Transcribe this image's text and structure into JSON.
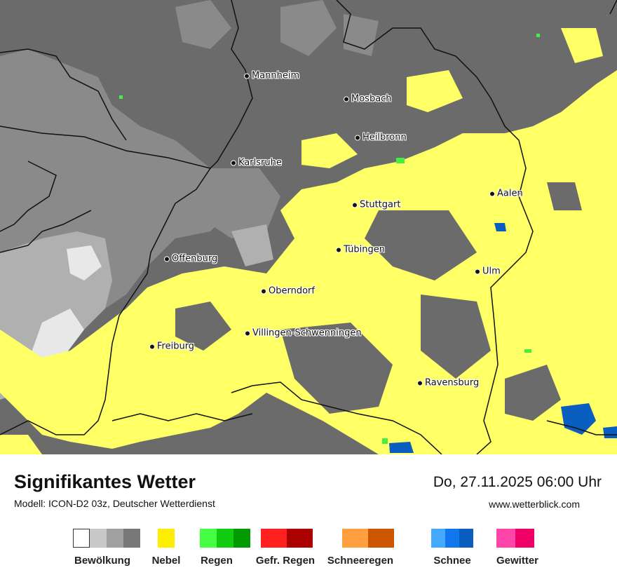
{
  "map": {
    "cities": [
      {
        "name": "Mannheim"
      },
      {
        "name": "Mosbach"
      },
      {
        "name": "Heilbronn"
      },
      {
        "name": "Karlsruhe"
      },
      {
        "name": "Aalen"
      },
      {
        "name": "Stuttgart"
      },
      {
        "name": "Tübingen"
      },
      {
        "name": "Offenburg"
      },
      {
        "name": "Ulm"
      },
      {
        "name": "Oberndorf"
      },
      {
        "name": "Villingen-Schwenningen"
      },
      {
        "name": "Freiburg"
      },
      {
        "name": "Ravensburg"
      }
    ],
    "colors": {
      "background_cloud": "#6b6b6b",
      "medium_cloud": "#8a8a8a",
      "light_cloud": "#b0b0b0",
      "fog": "#ffff66",
      "snow": "#0a5ec0",
      "rain": "#44ee44",
      "border": "#111111"
    }
  },
  "footer": {
    "title": "Signifikantes Wetter",
    "subtitle": "Modell: ICON-D2 03z, Deutscher Wetterdienst",
    "datetime": "Do, 27.11.2025 06:00 Uhr",
    "website": "www.wetterblick.com"
  },
  "legend": [
    {
      "label": "Bewölkung",
      "colors": [
        "#ffffff",
        "#c8c8c8",
        "#a0a0a0",
        "#787878"
      ]
    },
    {
      "label": "Nebel",
      "colors": [
        "#ffee00"
      ]
    },
    {
      "label": "Regen",
      "colors": [
        "#44ff44",
        "#11cc11",
        "#009900"
      ]
    },
    {
      "label": "Gefr. Regen",
      "colors": [
        "#ff2020",
        "#aa0000"
      ]
    },
    {
      "label": "Schneeregen",
      "colors": [
        "#ffa040",
        "#cc5500"
      ]
    },
    {
      "label": "Schnee",
      "colors": [
        "#44aaff",
        "#1177ee",
        "#0a5ec0"
      ]
    },
    {
      "label": "Gewitter",
      "colors": [
        "#ff44aa",
        "#ee0066"
      ]
    }
  ]
}
